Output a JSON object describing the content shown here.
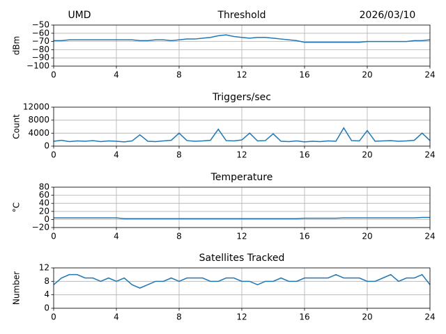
{
  "chart_data": [
    {
      "type": "line",
      "title": "Threshold",
      "annotations": [
        "UMD",
        "2026/03/10"
      ],
      "ylabel": "dBm",
      "color": "#1f77b4",
      "grid": true,
      "x": [
        0,
        0.5,
        1,
        1.5,
        2,
        2.5,
        3,
        3.5,
        4,
        4.5,
        5,
        5.5,
        6,
        6.5,
        7,
        7.5,
        8,
        8.5,
        9,
        9.5,
        10,
        10.5,
        11,
        11.5,
        12,
        12.5,
        13,
        13.5,
        14,
        14.5,
        15,
        15.5,
        16,
        16.5,
        17,
        17.5,
        18,
        18.5,
        19,
        19.5,
        20,
        20.5,
        21,
        21.5,
        22,
        22.5,
        23,
        23.5,
        24
      ],
      "values": [
        -69,
        -69,
        -68,
        -68,
        -68,
        -68,
        -68,
        -68,
        -68,
        -68,
        -68,
        -69,
        -69,
        -68,
        -68,
        -69,
        -68,
        -67,
        -67,
        -66,
        -65,
        -63,
        -62,
        -64,
        -65,
        -66,
        -65,
        -65,
        -66,
        -67,
        -68,
        -69,
        -71,
        -71,
        -71,
        -71,
        -71,
        -71,
        -71,
        -71,
        -70,
        -70,
        -70,
        -70,
        -70,
        -70,
        -69,
        -69,
        -68
      ],
      "xlim": [
        0,
        24
      ],
      "xticks": [
        0,
        4,
        8,
        12,
        16,
        20,
        24
      ],
      "ylim": [
        -100,
        -50
      ],
      "yticks": [
        {
          "value": -100,
          "label": "−100"
        },
        {
          "value": -90,
          "label": "−90"
        },
        {
          "value": -80,
          "label": "−80"
        },
        {
          "value": -70,
          "label": "−70"
        },
        {
          "value": -60,
          "label": "−60"
        },
        {
          "value": -50,
          "label": "−50"
        }
      ]
    },
    {
      "type": "line",
      "title": "Triggers/sec",
      "ylabel": "Count",
      "color": "#1f77b4",
      "grid": true,
      "x": [
        0,
        0.5,
        1,
        1.5,
        2,
        2.5,
        3,
        3.5,
        4,
        4.5,
        5,
        5.5,
        6,
        6.5,
        7,
        7.5,
        8,
        8.5,
        9,
        9.5,
        10,
        10.5,
        11,
        11.5,
        12,
        12.5,
        13,
        13.5,
        14,
        14.5,
        15,
        15.5,
        16,
        16.5,
        17,
        17.5,
        18,
        18.5,
        19,
        19.5,
        20,
        20.5,
        21,
        21.5,
        22,
        22.5,
        23,
        23.5,
        24
      ],
      "values": [
        1500,
        1800,
        1400,
        1600,
        1500,
        1700,
        1400,
        1600,
        1500,
        1300,
        1600,
        3500,
        1500,
        1400,
        1600,
        1800,
        4000,
        1700,
        1500,
        1600,
        1800,
        5200,
        1700,
        1600,
        1900,
        4000,
        1600,
        1700,
        3800,
        1500,
        1400,
        1600,
        1300,
        1500,
        1400,
        1600,
        1500,
        5600,
        1700,
        1600,
        4800,
        1500,
        1600,
        1700,
        1500,
        1600,
        1800,
        4000,
        1700
      ],
      "xlim": [
        0,
        24
      ],
      "xticks": [
        0,
        4,
        8,
        12,
        16,
        20,
        24
      ],
      "ylim": [
        0,
        12000
      ],
      "yticks": [
        0,
        4000,
        8000,
        12000
      ]
    },
    {
      "type": "line",
      "title": "Temperature",
      "ylabel": "°C",
      "color": "#1f77b4",
      "grid": true,
      "x": [
        0,
        0.5,
        1,
        1.5,
        2,
        2.5,
        3,
        3.5,
        4,
        4.5,
        5,
        5.5,
        6,
        6.5,
        7,
        7.5,
        8,
        8.5,
        9,
        9.5,
        10,
        10.5,
        11,
        11.5,
        12,
        12.5,
        13,
        13.5,
        14,
        14.5,
        15,
        15.5,
        16,
        16.5,
        17,
        17.5,
        18,
        18.5,
        19,
        19.5,
        20,
        20.5,
        21,
        21.5,
        22,
        22.5,
        23,
        23.5,
        24
      ],
      "values": [
        4,
        4,
        4,
        4,
        4,
        4,
        4,
        4,
        4,
        2,
        2,
        2,
        2,
        2,
        2,
        2,
        2,
        2,
        2,
        2,
        2,
        2,
        2,
        2,
        2,
        2,
        2,
        2,
        2,
        2,
        2,
        2,
        3,
        3,
        3,
        3,
        3,
        4,
        4,
        4,
        4,
        4,
        4,
        4,
        4,
        4,
        4,
        5,
        5
      ],
      "xlim": [
        0,
        24
      ],
      "xticks": [
        0,
        4,
        8,
        12,
        16,
        20,
        24
      ],
      "ylim": [
        -20,
        80
      ],
      "yticks": [
        {
          "value": -20,
          "label": "−20"
        },
        0,
        20,
        40,
        60,
        80
      ]
    },
    {
      "type": "line",
      "title": "Satellites Tracked",
      "ylabel": "Number",
      "color": "#1f77b4",
      "grid": true,
      "x": [
        0,
        0.5,
        1,
        1.5,
        2,
        2.5,
        3,
        3.5,
        4,
        4.5,
        5,
        5.5,
        6,
        6.5,
        7,
        7.5,
        8,
        8.5,
        9,
        9.5,
        10,
        10.5,
        11,
        11.5,
        12,
        12.5,
        13,
        13.5,
        14,
        14.5,
        15,
        15.5,
        16,
        16.5,
        17,
        17.5,
        18,
        18.5,
        19,
        19.5,
        20,
        20.5,
        21,
        21.5,
        22,
        22.5,
        23,
        23.5,
        24
      ],
      "values": [
        7,
        9,
        10,
        10,
        9,
        9,
        8,
        9,
        8,
        9,
        7,
        6,
        7,
        8,
        8,
        9,
        8,
        9,
        9,
        9,
        8,
        8,
        9,
        9,
        8,
        8,
        7,
        8,
        8,
        9,
        8,
        8,
        9,
        9,
        9,
        9,
        10,
        9,
        9,
        9,
        8,
        8,
        9,
        10,
        8,
        9,
        9,
        10,
        7
      ],
      "xlim": [
        0,
        24
      ],
      "xticks": [
        0,
        4,
        8,
        12,
        16,
        20,
        24
      ],
      "ylim": [
        0,
        12
      ],
      "yticks": [
        0,
        4,
        8,
        12
      ]
    }
  ]
}
